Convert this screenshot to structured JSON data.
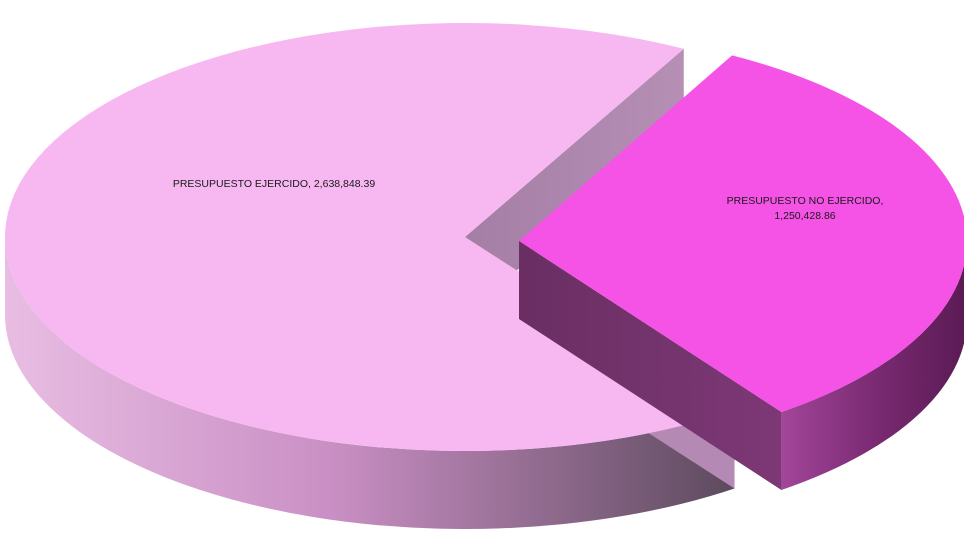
{
  "chart_data": {
    "type": "pie",
    "style": "3d-exploded",
    "title": "",
    "slices": [
      {
        "label": "PRESUPUESTO EJERCIDO",
        "value": 2638848.39,
        "value_text": "2,638,848.39",
        "color": "#f7b8f1",
        "side_color_light": "#e2b0dc",
        "side_color_dark": "#5f4a60"
      },
      {
        "label": "PRESUPUESTO NO EJERCIDO",
        "value": 1250428.86,
        "value_text": "1,250,428.86",
        "color": "#f552e6",
        "side_color_light": "#9c3e93",
        "side_color_dark": "#5b1b55"
      }
    ],
    "legend": "none"
  }
}
